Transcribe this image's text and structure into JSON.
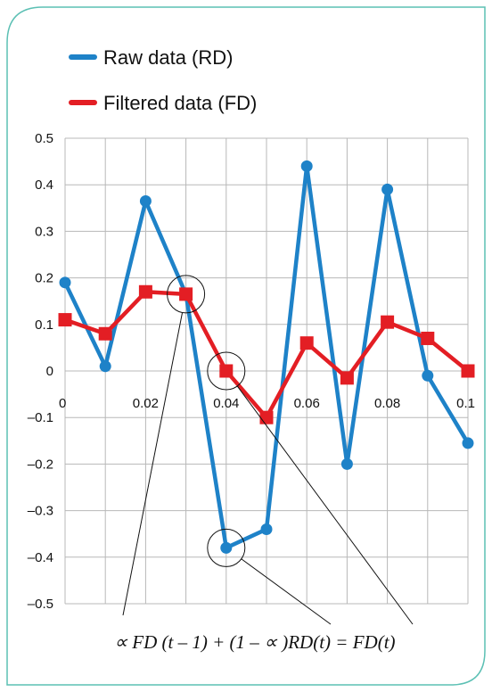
{
  "chart_data": {
    "type": "line",
    "x": [
      0,
      0.01,
      0.02,
      0.03,
      0.04,
      0.05,
      0.06,
      0.07,
      0.08,
      0.09,
      0.1
    ],
    "series": [
      {
        "name": "Raw data (RD)",
        "color": "#1e82c8",
        "marker": "circle",
        "values": [
          0.19,
          0.01,
          0.365,
          0.165,
          -0.38,
          -0.34,
          0.44,
          -0.2,
          0.39,
          -0.01,
          -0.155
        ]
      },
      {
        "name": "Filtered data (FD)",
        "color": "#e31e24",
        "marker": "square",
        "values": [
          0.11,
          0.08,
          0.17,
          0.165,
          0.0,
          -0.1,
          0.06,
          -0.015,
          0.105,
          0.07,
          0.0
        ]
      }
    ],
    "x_tick_labels": [
      "0",
      "0.02",
      "0.04",
      "0.06",
      "0.08",
      "0.1"
    ],
    "y_tick_labels": [
      "0.5",
      "0.4",
      "0.3",
      "0.2",
      "0.1",
      "0",
      "–0.1",
      "–0.2",
      "–0.3",
      "–0.4",
      "–0.5"
    ],
    "xlim": [
      0,
      0.1
    ],
    "ylim": [
      -0.5,
      0.5
    ],
    "grid": true,
    "legend_position": "top-left",
    "annotation_formula": "∝ FD (t – 1) + (1 – ∝ )RD(t) = FD(t)",
    "highlighted_points": [
      {
        "series": "Filtered data (FD)",
        "x": 0.03,
        "y": 0.165
      },
      {
        "series": "Filtered data (FD)",
        "x": 0.04,
        "y": 0.0
      },
      {
        "series": "Raw data (RD)",
        "x": 0.04,
        "y": -0.38
      }
    ]
  },
  "colors": {
    "frame_border": "#5cc0b4",
    "grid": "#b8b8b8"
  }
}
